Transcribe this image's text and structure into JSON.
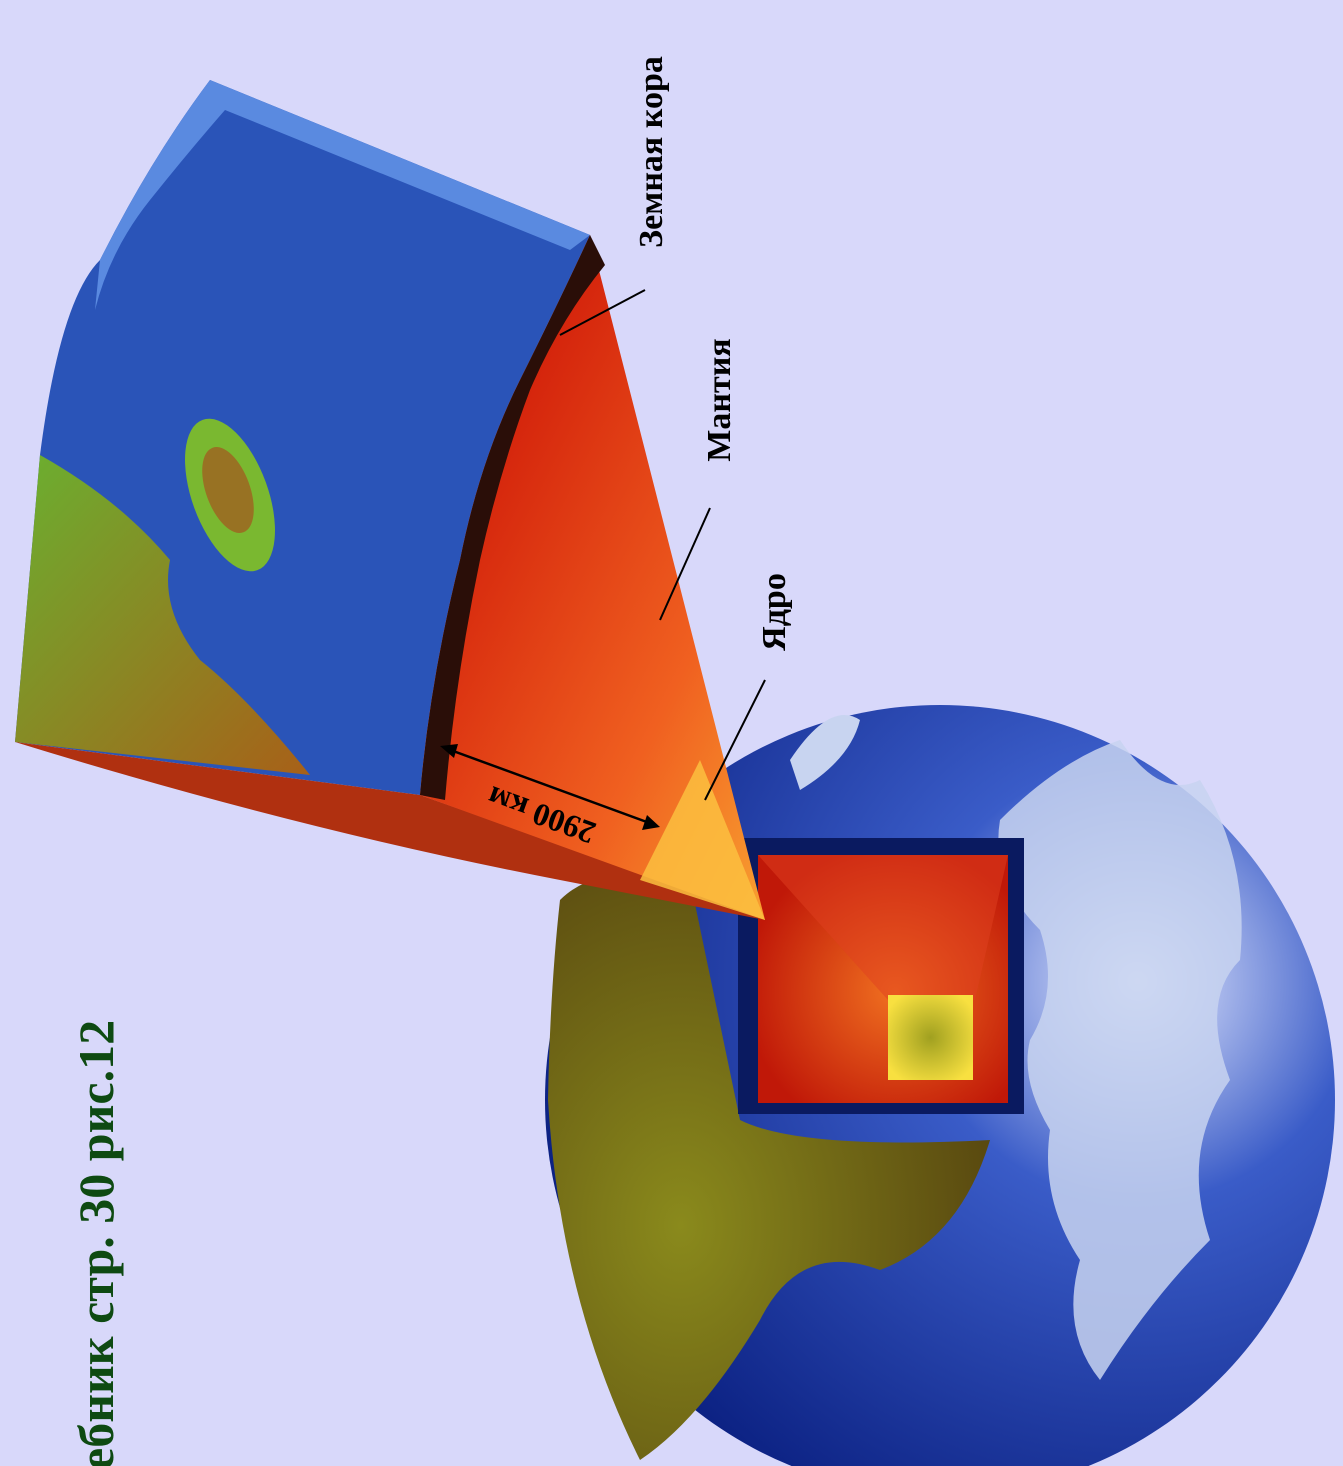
{
  "caption": "ебник стр. 30 рис.12",
  "labels": {
    "crust": "Земная кора",
    "mantle": "Мантия",
    "core": "Ядро"
  },
  "distance": "2900 км"
}
